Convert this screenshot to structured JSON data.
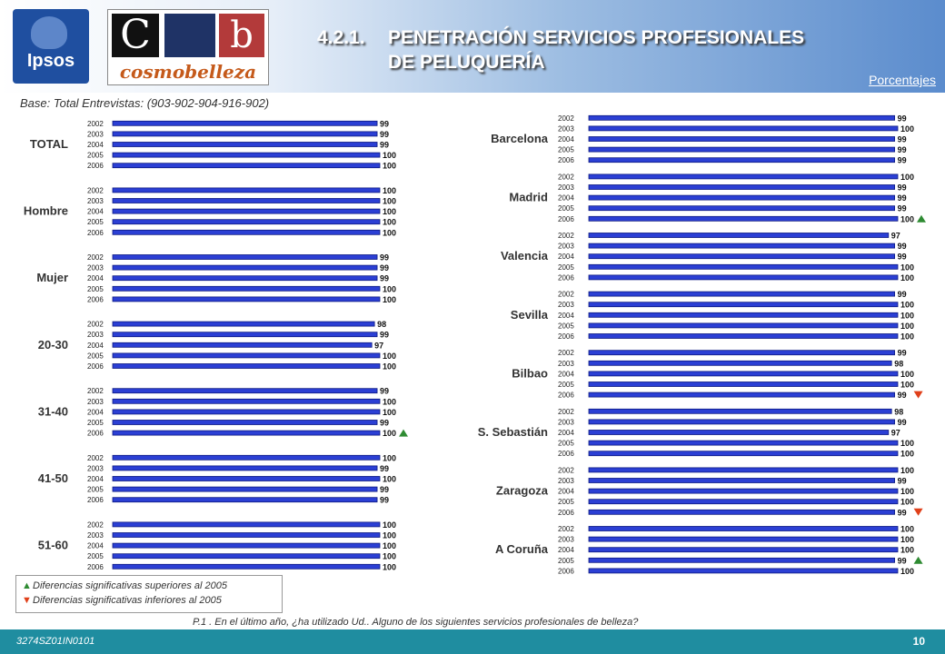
{
  "header": {
    "logo_text": "Ipsos",
    "logo2_letters": [
      "C",
      "b"
    ],
    "logo2_word": "cosmobelleza",
    "title_number": "4.2.1.",
    "title_line1": "PENETRACIÓN SERVICIOS PROFESIONALES",
    "title_line2": "DE PELUQUERÍA",
    "units": "Porcentajes"
  },
  "base_note": "Base: Total Entrevistas: (903-902-904-916-902)",
  "legend": {
    "up": "Diferencias significativas superiores al 2005",
    "down": "Diferencias significativas inferiores al 2005"
  },
  "question": "P.1 .    En el último año, ¿ha utilizado Ud.. Alguno de los siguientes servicios profesionales de belleza?",
  "footer": {
    "code": "3274SZ01IN0101",
    "page": "10"
  },
  "colors": {
    "bar": "#2b3fd4",
    "bar_edge": "#0d1a80",
    "up": "#2e8b32",
    "down": "#e0401a"
  },
  "chart_data": {
    "type": "bar",
    "years": [
      "2002",
      "2003",
      "2004",
      "2005",
      "2006"
    ],
    "xlim": [
      0,
      100
    ],
    "groups": [
      {
        "label": "TOTAL",
        "values": [
          99,
          99,
          99,
          100,
          100
        ],
        "marker": [
          null,
          null,
          null,
          null,
          null
        ]
      },
      {
        "label": "Hombre",
        "values": [
          100,
          100,
          100,
          100,
          100
        ],
        "marker": [
          null,
          null,
          null,
          null,
          null
        ]
      },
      {
        "label": "Mujer",
        "values": [
          99,
          99,
          99,
          100,
          100
        ],
        "marker": [
          null,
          null,
          null,
          null,
          null
        ]
      },
      {
        "label": "20-30",
        "values": [
          98,
          99,
          97,
          100,
          100
        ],
        "marker": [
          null,
          null,
          null,
          null,
          null
        ]
      },
      {
        "label": "31-40",
        "values": [
          99,
          100,
          100,
          99,
          100
        ],
        "marker": [
          null,
          null,
          null,
          null,
          "up"
        ]
      },
      {
        "label": "41-50",
        "values": [
          100,
          99,
          100,
          99,
          99
        ],
        "marker": [
          null,
          null,
          null,
          null,
          null
        ]
      },
      {
        "label": "51-60",
        "values": [
          100,
          100,
          100,
          100,
          100
        ],
        "marker": [
          null,
          null,
          null,
          null,
          null
        ]
      },
      {
        "label": "Barcelona",
        "values": [
          99,
          100,
          99,
          99,
          99
        ],
        "marker": [
          null,
          null,
          null,
          null,
          null
        ]
      },
      {
        "label": "Madrid",
        "values": [
          100,
          99,
          99,
          99,
          100
        ],
        "marker": [
          null,
          null,
          null,
          null,
          "up"
        ]
      },
      {
        "label": "Valencia",
        "values": [
          97,
          99,
          99,
          100,
          100
        ],
        "marker": [
          null,
          null,
          null,
          null,
          null
        ]
      },
      {
        "label": "Sevilla",
        "values": [
          99,
          100,
          100,
          100,
          100
        ],
        "marker": [
          null,
          null,
          null,
          null,
          null
        ]
      },
      {
        "label": "Bilbao",
        "values": [
          99,
          98,
          100,
          100,
          99
        ],
        "marker": [
          null,
          null,
          null,
          null,
          "down"
        ]
      },
      {
        "label": "S. Sebastián",
        "values": [
          98,
          99,
          97,
          100,
          100
        ],
        "marker": [
          null,
          null,
          null,
          null,
          null
        ]
      },
      {
        "label": "Zaragoza",
        "values": [
          100,
          99,
          100,
          100,
          99
        ],
        "marker": [
          null,
          null,
          null,
          null,
          "down"
        ]
      },
      {
        "label": "A Coruña",
        "values": [
          100,
          100,
          100,
          99,
          100
        ],
        "marker": [
          null,
          null,
          null,
          "up",
          null
        ]
      }
    ]
  }
}
